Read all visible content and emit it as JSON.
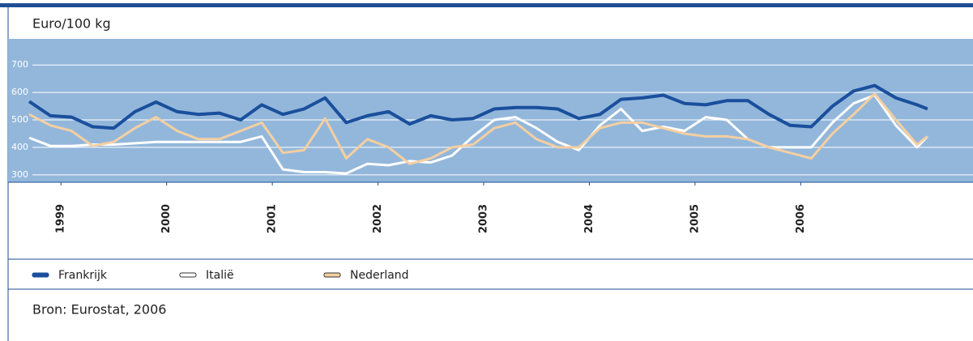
{
  "chart_data": {
    "type": "line",
    "title": "Euro/100 kg",
    "source": "Bron: Eurostat, 2006",
    "x": [
      1998.7,
      1998.9,
      1999.1,
      1999.3,
      1999.5,
      1999.7,
      1999.9,
      2000.1,
      2000.3,
      2000.5,
      2000.7,
      2000.9,
      2001.1,
      2001.3,
      2001.5,
      2001.7,
      2001.9,
      2002.1,
      2002.3,
      2002.5,
      2002.7,
      2002.9,
      2003.1,
      2003.3,
      2003.5,
      2003.7,
      2003.9,
      2004.1,
      2004.3,
      2004.5,
      2004.7,
      2004.9,
      2005.1,
      2005.3,
      2005.5,
      2005.7,
      2005.9,
      2006.1,
      2006.3,
      2006.5,
      2006.7,
      2006.9,
      2007.1,
      2007.2
    ],
    "series": [
      {
        "name": "Frankrijk",
        "color": "#1a4f9c",
        "values": [
          567,
          515,
          510,
          475,
          470,
          530,
          565,
          530,
          520,
          525,
          500,
          555,
          520,
          540,
          580,
          490,
          515,
          530,
          485,
          515,
          500,
          505,
          540,
          545,
          545,
          540,
          505,
          520,
          575,
          580,
          590,
          560,
          555,
          570,
          570,
          520,
          480,
          475,
          550,
          605,
          625,
          580,
          555,
          540
        ]
      },
      {
        "name": "Italië",
        "color": "#ffffff",
        "values": [
          435,
          405,
          405,
          410,
          410,
          415,
          420,
          420,
          420,
          420,
          420,
          440,
          320,
          310,
          310,
          305,
          340,
          335,
          350,
          345,
          370,
          440,
          500,
          510,
          470,
          420,
          390,
          480,
          540,
          460,
          475,
          460,
          510,
          500,
          430,
          400,
          400,
          400,
          490,
          560,
          590,
          480,
          400,
          440
        ]
      },
      {
        "name": "Nederland",
        "color": "#f5cfa0",
        "values": [
          520,
          480,
          460,
          405,
          420,
          470,
          510,
          460,
          430,
          430,
          460,
          490,
          380,
          390,
          505,
          360,
          430,
          400,
          340,
          360,
          400,
          410,
          470,
          490,
          430,
          400,
          400,
          470,
          490,
          490,
          470,
          450,
          440,
          440,
          430,
          400,
          380,
          360,
          450,
          520,
          595,
          500,
          410,
          440
        ]
      }
    ],
    "xlim": [
      1998.5,
      2007.63
    ],
    "xticks": [
      1999,
      2000,
      2001,
      2002,
      2003,
      2004,
      2005,
      2006
    ],
    "ylim": [
      273,
      795
    ],
    "yticks": [
      300,
      400,
      500,
      600,
      700
    ],
    "grid": true
  }
}
